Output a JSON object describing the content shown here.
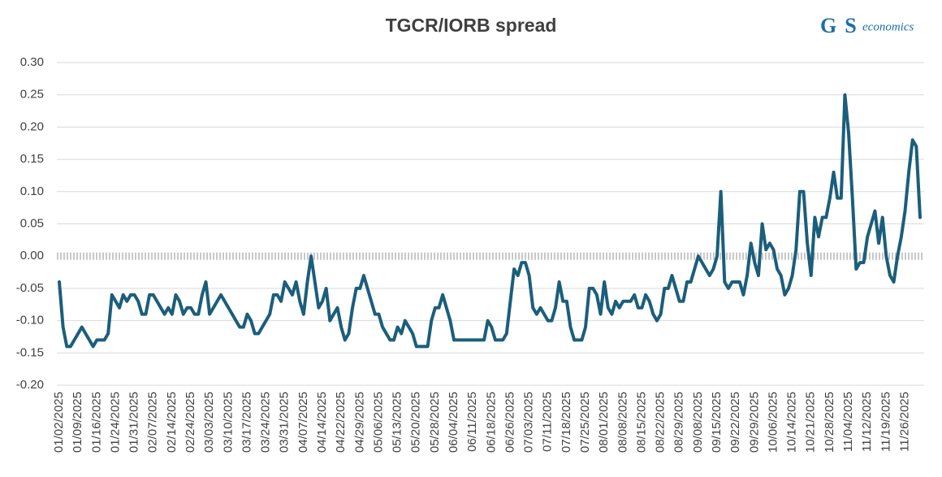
{
  "chart_data": {
    "type": "line",
    "title": "TGCR/IORB spread",
    "categories": [
      "01/02/2025",
      null,
      null,
      null,
      null,
      "01/09/2025",
      null,
      null,
      null,
      null,
      "01/16/2025",
      null,
      null,
      null,
      null,
      "01/24/2025",
      null,
      null,
      null,
      null,
      "01/31/2025",
      null,
      null,
      null,
      null,
      "02/07/2025",
      null,
      null,
      null,
      null,
      "02/14/2025",
      null,
      null,
      null,
      null,
      "02/24/2025",
      null,
      null,
      null,
      null,
      "03/03/2025",
      null,
      null,
      null,
      null,
      "03/10/2025",
      null,
      null,
      null,
      null,
      "03/17/2025",
      null,
      null,
      null,
      null,
      "03/24/2025",
      null,
      null,
      null,
      null,
      "03/31/2025",
      null,
      null,
      null,
      null,
      "04/07/2025",
      null,
      null,
      null,
      null,
      "04/14/2025",
      null,
      null,
      null,
      null,
      "04/22/2025",
      null,
      null,
      null,
      null,
      "04/29/2025",
      null,
      null,
      null,
      null,
      "05/06/2025",
      null,
      null,
      null,
      null,
      "05/13/2025",
      null,
      null,
      null,
      null,
      "05/20/2025",
      null,
      null,
      null,
      null,
      "05/28/2025",
      null,
      null,
      null,
      null,
      "06/04/2025",
      null,
      null,
      null,
      null,
      "06/11/2025",
      null,
      null,
      null,
      null,
      "06/18/2025",
      null,
      null,
      null,
      null,
      "06/26/2025",
      null,
      null,
      null,
      null,
      "07/03/2025",
      null,
      null,
      null,
      null,
      "07/11/2025",
      null,
      null,
      null,
      null,
      "07/18/2025",
      null,
      null,
      null,
      null,
      "07/25/2025",
      null,
      null,
      null,
      null,
      "08/01/2025",
      null,
      null,
      null,
      null,
      "08/08/2025",
      null,
      null,
      null,
      null,
      "08/15/2025",
      null,
      null,
      null,
      null,
      "08/22/2025",
      null,
      null,
      null,
      null,
      "08/29/2025",
      null,
      null,
      null,
      null,
      "09/08/2025",
      null,
      null,
      null,
      null,
      "09/15/2025",
      null,
      null,
      null,
      null,
      "09/22/2025",
      null,
      null,
      null,
      null,
      "09/29/2025",
      null,
      null,
      null,
      null,
      "10/06/2025",
      null,
      null,
      null,
      null,
      "10/14/2025",
      null,
      null,
      null,
      null,
      "10/21/2025",
      null,
      null,
      null,
      null,
      "10/28/2025",
      null,
      null,
      null,
      null,
      "11/04/2025",
      null,
      null,
      null,
      null,
      "11/12/2025",
      null,
      null,
      null,
      null,
      "11/19/2025",
      null,
      null,
      null,
      null,
      "11/26/2025",
      null,
      null,
      null,
      null
    ],
    "values": [
      -0.04,
      -0.11,
      -0.14,
      -0.14,
      -0.13,
      -0.12,
      -0.11,
      -0.12,
      -0.13,
      -0.14,
      -0.13,
      -0.13,
      -0.13,
      -0.12,
      -0.06,
      -0.07,
      -0.08,
      -0.06,
      -0.07,
      -0.06,
      -0.06,
      -0.07,
      -0.09,
      -0.09,
      -0.06,
      -0.06,
      -0.07,
      -0.08,
      -0.09,
      -0.08,
      -0.09,
      -0.06,
      -0.07,
      -0.09,
      -0.08,
      -0.08,
      -0.09,
      -0.09,
      -0.06,
      -0.04,
      -0.09,
      -0.08,
      -0.07,
      -0.06,
      -0.07,
      -0.08,
      -0.09,
      -0.1,
      -0.11,
      -0.11,
      -0.09,
      -0.1,
      -0.12,
      -0.12,
      -0.11,
      -0.1,
      -0.09,
      -0.06,
      -0.06,
      -0.07,
      -0.04,
      -0.05,
      -0.06,
      -0.04,
      -0.07,
      -0.09,
      -0.04,
      0.0,
      -0.04,
      -0.08,
      -0.07,
      -0.05,
      -0.1,
      -0.09,
      -0.08,
      -0.11,
      -0.13,
      -0.12,
      -0.08,
      -0.05,
      -0.05,
      -0.03,
      -0.05,
      -0.07,
      -0.09,
      -0.09,
      -0.11,
      -0.12,
      -0.13,
      -0.13,
      -0.11,
      -0.12,
      -0.1,
      -0.11,
      -0.12,
      -0.14,
      -0.14,
      -0.14,
      -0.14,
      -0.1,
      -0.08,
      -0.08,
      -0.06,
      -0.08,
      -0.1,
      -0.13,
      -0.13,
      -0.13,
      -0.13,
      -0.13,
      -0.13,
      -0.13,
      -0.13,
      -0.13,
      -0.1,
      -0.11,
      -0.13,
      -0.13,
      -0.13,
      -0.12,
      -0.07,
      -0.02,
      -0.03,
      -0.01,
      -0.01,
      -0.03,
      -0.08,
      -0.09,
      -0.08,
      -0.09,
      -0.1,
      -0.1,
      -0.08,
      -0.04,
      -0.07,
      -0.07,
      -0.11,
      -0.13,
      -0.13,
      -0.13,
      -0.11,
      -0.05,
      -0.05,
      -0.06,
      -0.09,
      -0.04,
      -0.08,
      -0.09,
      -0.07,
      -0.08,
      -0.07,
      -0.07,
      -0.07,
      -0.06,
      -0.08,
      -0.08,
      -0.06,
      -0.07,
      -0.09,
      -0.1,
      -0.09,
      -0.05,
      -0.05,
      -0.03,
      -0.05,
      -0.07,
      -0.07,
      -0.04,
      -0.04,
      -0.02,
      0.0,
      -0.01,
      -0.02,
      -0.03,
      -0.02,
      0.0,
      0.1,
      -0.04,
      -0.05,
      -0.04,
      -0.04,
      -0.04,
      -0.06,
      -0.03,
      0.02,
      -0.01,
      -0.03,
      0.05,
      0.01,
      0.02,
      0.01,
      -0.02,
      -0.03,
      -0.06,
      -0.05,
      -0.03,
      0.01,
      0.1,
      0.1,
      0.02,
      -0.03,
      0.06,
      0.03,
      0.06,
      0.06,
      0.09,
      0.13,
      0.09,
      0.09,
      0.25,
      0.19,
      0.09,
      -0.02,
      -0.01,
      -0.01,
      0.03,
      0.05,
      0.07,
      0.02,
      0.06,
      0.0,
      -0.03,
      -0.04,
      0.0,
      0.03,
      0.07,
      0.13,
      0.18,
      0.17,
      0.06
    ],
    "color": "#1b5e7b",
    "ylim": [
      -0.2,
      0.3
    ],
    "yticks": [
      {
        "value": 0.3,
        "label": "0.30"
      },
      0.25,
      {
        "value": 0.2,
        "label": "0.20"
      },
      0.15,
      {
        "value": 0.1,
        "label": "0.10"
      },
      0.05,
      {
        "value": 0,
        "label": "0.00"
      },
      -0.05,
      {
        "value": -0.1,
        "label": "-0.10"
      },
      -0.15,
      {
        "value": -0.2,
        "label": "-0.20"
      }
    ],
    "grid": true
  },
  "logo": {
    "letters": "GS",
    "word": "economics"
  }
}
